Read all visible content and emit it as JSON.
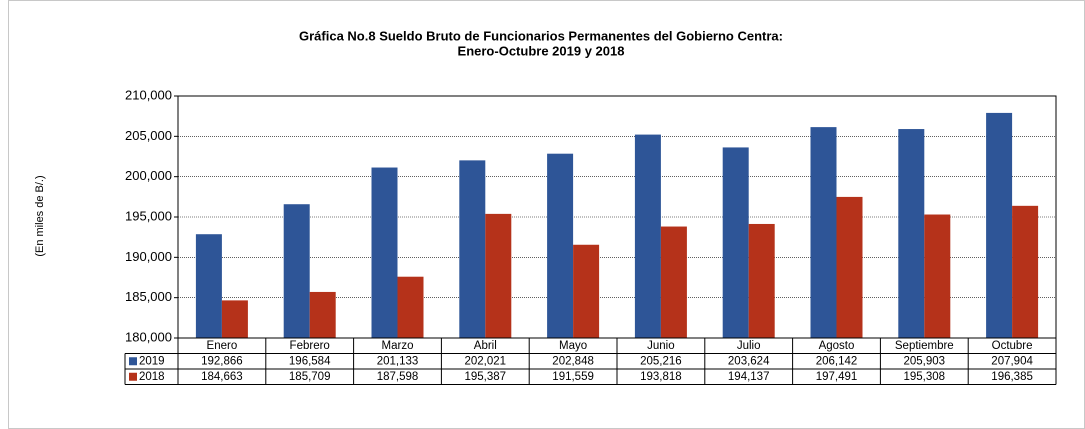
{
  "chart_data": {
    "type": "bar",
    "title": [
      "Gráfica No.8 Sueldo Bruto de Funcionarios Permanentes del Gobierno Centra:",
      "Enero-Octubre 2019 y 2018"
    ],
    "y_label": "(En miles de B/.)",
    "categories": [
      "Enero",
      "Febrero",
      "Marzo",
      "Abril",
      "Mayo",
      "Junio",
      "Julio",
      "Agosto",
      "Septiembre",
      "Octubre"
    ],
    "series": [
      {
        "name": "2019",
        "color": "#2e5597",
        "values": [
          192866,
          196584,
          201133,
          202021,
          202848,
          205216,
          203624,
          206142,
          205903,
          207904
        ],
        "value_labels": [
          "192,866",
          "196,584",
          "201,133",
          "202,021",
          "202,848",
          "205,216",
          "203,624",
          "206,142",
          "205,903",
          "207,904"
        ]
      },
      {
        "name": "2018",
        "color": "#b5321a",
        "values": [
          184663,
          185709,
          187598,
          195387,
          191559,
          193818,
          194137,
          197491,
          195308,
          196385
        ],
        "value_labels": [
          "184,663",
          "185,709",
          "187,598",
          "195,387",
          "191,559",
          "193,818",
          "194,137",
          "197,491",
          "195,308",
          "196,385"
        ]
      }
    ],
    "ylim": [
      180000,
      210000
    ],
    "yticks": [
      {
        "value": 180000,
        "label": "180,000"
      },
      {
        "value": 185000,
        "label": "185,000"
      },
      {
        "value": 190000,
        "label": "190,000"
      },
      {
        "value": 195000,
        "label": "195,000"
      },
      {
        "value": 200000,
        "label": "200,000"
      },
      {
        "value": 205000,
        "label": "205,000"
      },
      {
        "value": 210000,
        "label": "210,000"
      }
    ],
    "grid": true
  }
}
